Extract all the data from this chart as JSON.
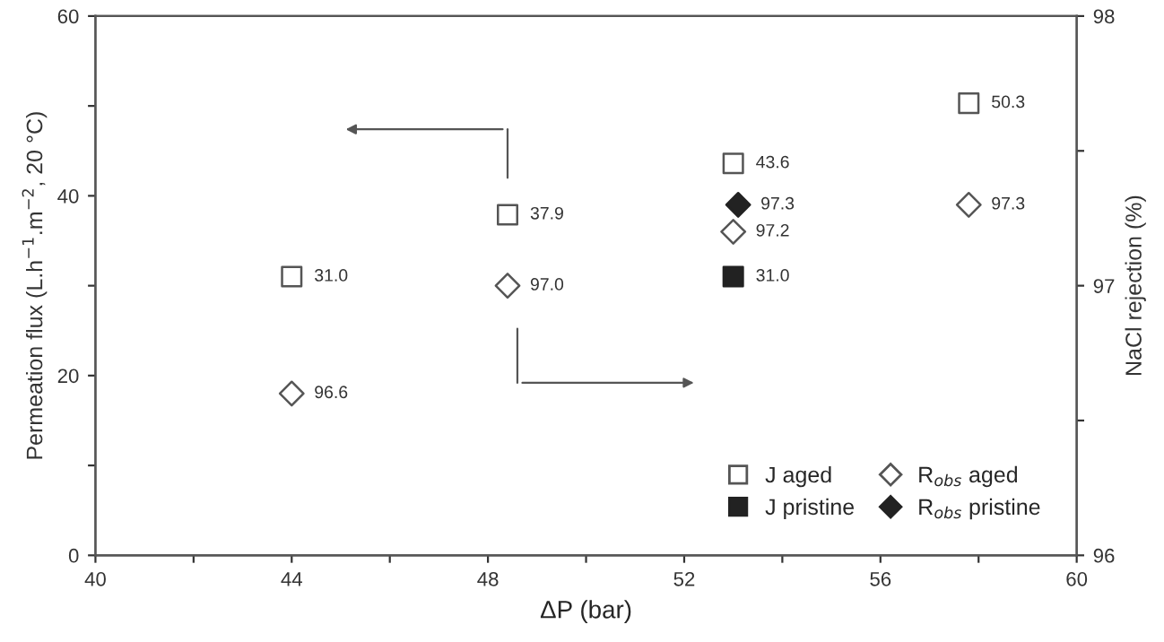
{
  "chart_data": {
    "type": "scatter",
    "xlabel": "ΔP (bar)",
    "ylabel": "Permeation flux (L.h$^{−1}$.m$^{−2}$, 20 °C)",
    "y2label": "NaCl rejection (%)",
    "xlim": [
      40,
      60
    ],
    "xticks": [
      40,
      {
        "value": 42,
        "label": null
      },
      44,
      {
        "value": 46,
        "label": null
      },
      48,
      {
        "value": 50,
        "label": null
      },
      52,
      {
        "value": 54,
        "label": null
      },
      56,
      {
        "value": 58,
        "label": null
      },
      60
    ],
    "ylim": [
      0,
      60
    ],
    "yticks": [
      0,
      {
        "value": 10,
        "label": null
      },
      20,
      {
        "value": 30,
        "label": null
      },
      40,
      {
        "value": 50,
        "label": null
      },
      60
    ],
    "y2lim": [
      96,
      98
    ],
    "y2ticks": [
      96,
      {
        "value": 96.5,
        "label": null
      },
      97,
      {
        "value": 97.5,
        "label": null
      },
      98
    ],
    "grid": false,
    "legend": "bottom right",
    "series": [
      {
        "name": "J aged",
        "marker": "square",
        "color": "#ffffff",
        "x": [
          44,
          48.4,
          53,
          57.8
        ],
        "values": [
          31.0,
          37.9,
          43.6,
          50.3
        ],
        "value_labels": [
          "31.0",
          "37.9",
          "43.6",
          "50.3"
        ]
      },
      {
        "name": "J pristine",
        "marker": "square",
        "color": "#222222",
        "x": [
          53
        ],
        "values": [
          31.0
        ],
        "value_labels": [
          "31.0"
        ]
      },
      {
        "name": "R$_{obs}$ aged",
        "marker": "diamond",
        "color": "#ffffff",
        "axis": "y2",
        "x": [
          44,
          48.4,
          53,
          57.8
        ],
        "values": [
          96.6,
          97.0,
          97.2,
          97.3
        ],
        "value_labels": [
          "96.6",
          "97.0",
          "97.2",
          "97.3"
        ]
      },
      {
        "name": "R$_{obs}$ pristine",
        "marker": "diamond",
        "color": "#222222",
        "axis": "y2",
        "x": [
          53.1
        ],
        "values": [
          97.3
        ],
        "value_labels": [
          "97.3"
        ]
      }
    ]
  }
}
